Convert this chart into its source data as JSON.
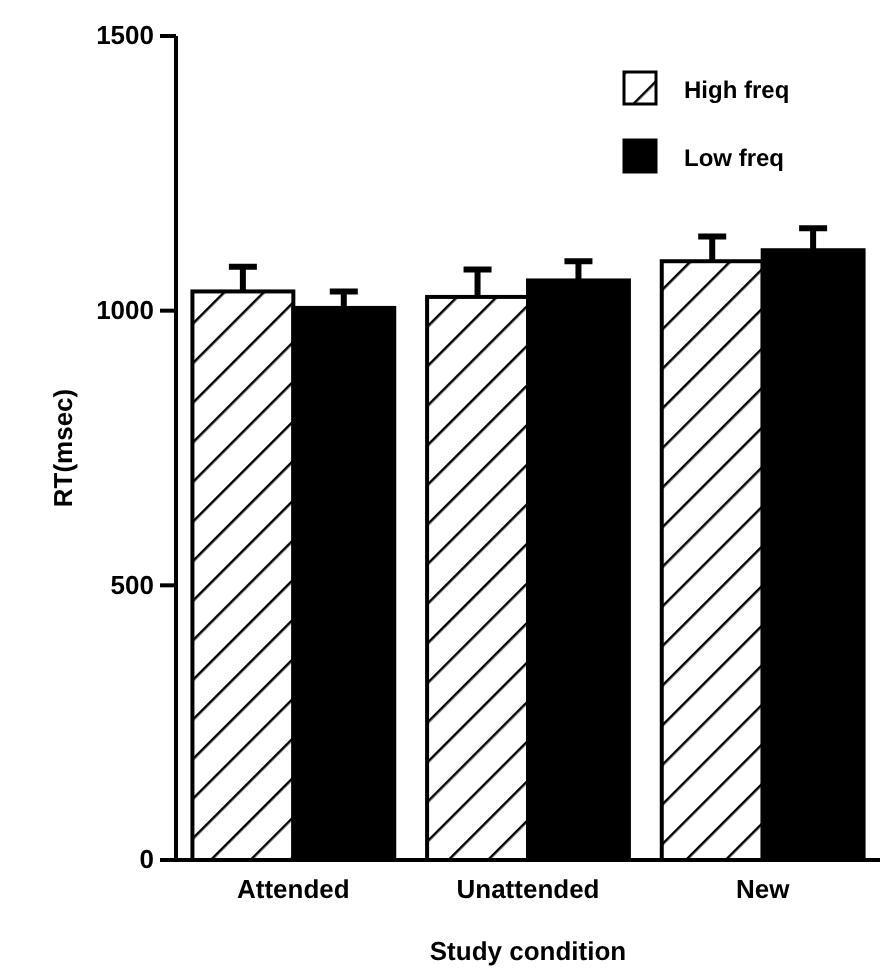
{
  "chart_data": {
    "type": "bar",
    "xlabel": "Study condition",
    "ylabel": "RT(msec)",
    "categories": [
      "Attended",
      "Unattended",
      "New"
    ],
    "series": [
      {
        "name": "High freq",
        "color": "#ffffff",
        "values": [
          1035,
          1025,
          1090
        ],
        "errors": [
          [
            1035,
            1080
          ],
          [
            1025,
            1075
          ],
          [
            1090,
            1135
          ]
        ]
      },
      {
        "name": "Low freq",
        "color": "#000000",
        "values": [
          1005,
          1055,
          1110
        ],
        "errors": [
          [
            1005,
            1035
          ],
          [
            1055,
            1090
          ],
          [
            1110,
            1150
          ]
        ]
      }
    ],
    "ylim": [
      0,
      1500
    ],
    "yticks": [
      0,
      500,
      1000,
      1500
    ],
    "grid": false,
    "legend": "top right"
  }
}
